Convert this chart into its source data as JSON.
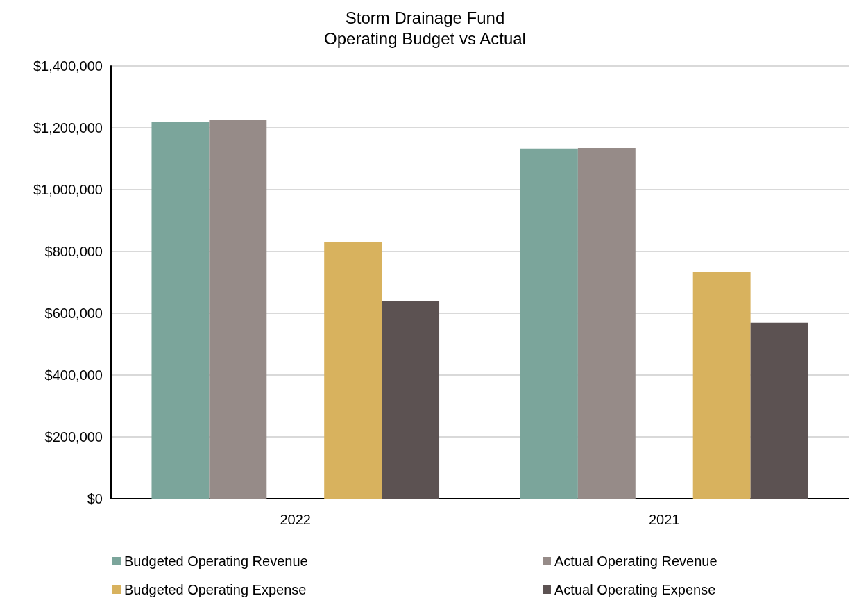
{
  "chart_data": {
    "type": "bar",
    "title": "Storm Drainage Fund",
    "subtitle": "Operating Budget vs Actual",
    "categories": [
      "2022",
      "2021"
    ],
    "series": [
      {
        "name": "Budgeted Operating Revenue",
        "color": "#7ba59b",
        "values": [
          1218000,
          1133000
        ]
      },
      {
        "name": "Actual Operating Revenue",
        "color": "#968b88",
        "values": [
          1225000,
          1135000
        ]
      },
      {
        "name": "Budgeted Operating Expense",
        "color": "#d8b25e",
        "values": [
          829000,
          735000
        ]
      },
      {
        "name": "Actual Operating Expense",
        "color": "#5c5252",
        "values": [
          640000,
          569000
        ]
      }
    ],
    "ylim": [
      0,
      1400000
    ],
    "yticks": [
      {
        "value": 0,
        "label": "$0"
      },
      {
        "value": 200000,
        "label": "$200,000"
      },
      {
        "value": 400000,
        "label": "$400,000"
      },
      {
        "value": 600000,
        "label": "$600,000"
      },
      {
        "value": 800000,
        "label": "$800,000"
      },
      {
        "value": 1000000,
        "label": "$1,000,000"
      },
      {
        "value": 1200000,
        "label": "$1,200,000"
      },
      {
        "value": 1400000,
        "label": "$1,400,000"
      }
    ],
    "grid": "y",
    "legend": "bottom"
  }
}
